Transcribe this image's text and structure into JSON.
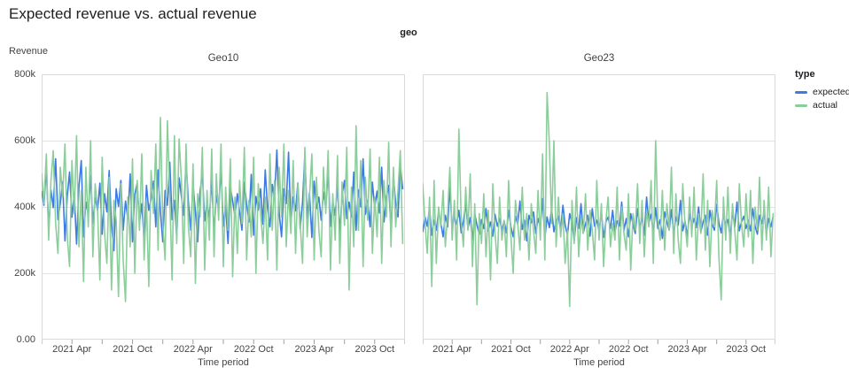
{
  "page": {
    "title": "Expected revenue vs. actual revenue"
  },
  "facet_dimension_label": "geo",
  "y_axis": {
    "title": "Revenue",
    "tick_labels": [
      "800k",
      "600k",
      "400k",
      "200k",
      "0.00"
    ],
    "max_thousands": 800
  },
  "x_axis": {
    "title": "Time period",
    "domain_weeks": 156,
    "ticks": [
      {
        "pos": 0,
        "label": ""
      },
      {
        "pos": 13,
        "label": "2021 Apr"
      },
      {
        "pos": 26,
        "label": ""
      },
      {
        "pos": 39,
        "label": "2021 Oct"
      },
      {
        "pos": 52,
        "label": ""
      },
      {
        "pos": 65,
        "label": "2022 Apr"
      },
      {
        "pos": 78,
        "label": ""
      },
      {
        "pos": 91,
        "label": "2022 Oct"
      },
      {
        "pos": 104,
        "label": ""
      },
      {
        "pos": 117,
        "label": "2023 Apr"
      },
      {
        "pos": 130,
        "label": ""
      },
      {
        "pos": 143,
        "label": "2023 Oct"
      },
      {
        "pos": 156,
        "label": ""
      }
    ]
  },
  "legend": {
    "title": "type",
    "items": [
      {
        "label": "expected",
        "color": "#3D7AE5"
      },
      {
        "label": "actual",
        "color": "#8BCD9B"
      }
    ]
  },
  "colors": {
    "grid": "#E2E2E2",
    "border": "#DADADA",
    "tick": "#9E9E9E"
  },
  "chart_data": {
    "type": "line",
    "title": "Expected revenue vs. actual revenue",
    "facet_by": "geo",
    "x_description": "weekly values, Jan 2021 - Dec 2023 (156 weeks)",
    "y_unit": "thousands (k) of revenue",
    "ylim": [
      0,
      800
    ],
    "grid": "horizontal only",
    "legend_position": "right",
    "facets": [
      {
        "name": "Geo10",
        "series": [
          {
            "name": "expected",
            "values": [
              447,
              405,
              520,
              332,
              451,
              398,
              545,
              362,
              410,
              476,
              298,
              432,
              505,
              369,
              440,
              288,
              462,
              540,
              310,
              415,
              378,
              495,
              350,
              428,
              390,
              472,
              318,
              440,
              385,
              510,
              345,
              268,
              455,
              402,
              480,
              330,
              418,
              365,
              500,
              295,
              438,
              472,
              352,
              410,
              300,
              465,
              390,
              425,
              478,
              340,
              512,
              385,
              295,
              450,
              405,
              535,
              362,
              420,
              310,
              488,
              432,
              375,
              540,
              415,
              330,
              470,
              385,
              295,
              445,
              502,
              358,
              412,
              368,
              480,
              322,
              435,
              395,
              515,
              342,
              405,
              290,
              460,
              418,
              372,
              440,
              385,
              330,
              475,
              408,
              355,
              498,
              315,
              432,
              390,
              455,
              348,
              512,
              395,
              340,
              468,
              425,
              572,
              380,
              310,
              455,
              410,
              565,
              352,
              430,
              388,
              472,
              335,
              415,
              558,
              365,
              442,
              308,
              478,
              395,
              430,
              360,
              445,
              398,
              510,
              342,
              418,
              375,
              465,
              320,
              435,
              480,
              365,
              415,
              370,
              505,
              330,
              452,
              400,
              545,
              378,
              420,
              340,
              475,
              398,
              448,
              382,
              520,
              355,
              430,
              465,
              330,
              495,
              410,
              370,
              528,
              455
            ]
          },
          {
            "name": "actual",
            "values": [
              500,
              410,
              560,
              300,
              480,
              570,
              350,
              260,
              520,
              430,
              590,
              310,
              220,
              540,
              380,
              615,
              280,
              450,
              175,
              520,
              340,
              600,
              250,
              470,
              390,
              180,
              550,
              320,
              230,
              490,
              150,
              420,
              360,
              130,
              470,
              240,
              115,
              430,
              280,
              545,
              200,
              480,
              330,
              560,
              240,
              420,
              160,
              510,
              380,
              590,
              270,
              670,
              350,
              240,
              660,
              430,
              180,
              615,
              290,
              605,
              480,
              230,
              590,
              340,
              250,
              530,
              170,
              440,
              370,
              580,
              210,
              450,
              300,
              575,
              250,
              500,
              360,
              590,
              220,
              460,
              330,
              545,
              190,
              430,
              260,
              480,
              350,
              580,
              240,
              420,
              310,
              550,
              200,
              470,
              380,
              290,
              430,
              240,
              560,
              330,
              480,
              210,
              520,
              370,
              590,
              280,
              450,
              320,
              540,
              260,
              470,
              350,
              230,
              580,
              310,
              430,
              560,
              240,
              490,
              330,
              250,
              520,
              380,
              570,
              210,
              440,
              300,
              555,
              230,
              475,
              345,
              580,
              150,
              460,
              280,
              645,
              330,
              540,
              220,
              490,
              360,
              575,
              260,
              430,
              310,
              550,
              230,
              480,
              370,
              595,
              280,
              520,
              340,
              450,
              570,
              290
            ]
          }
        ]
      },
      {
        "name": "Geo23",
        "series": [
          {
            "name": "expected",
            "values": [
              325,
              370,
              342,
              398,
              315,
              360,
              330,
              385,
              352,
              310,
              375,
              340,
              460,
              335,
              372,
              348,
              390,
              322,
              358,
              410,
              336,
              368,
              302,
              380,
              345,
              318,
              362,
              335,
              395,
              328,
              355,
              312,
              378,
              342,
              365,
              330,
              358,
              322,
              390,
              340,
              310,
              372,
              348,
              418,
              332,
              360,
              298,
              375,
              352,
              385,
              320,
              365,
              340,
              425,
              305,
              370,
              338,
              395,
              325,
              358,
              372,
              330,
              405,
              345,
              315,
              380,
              352,
              298,
              368,
              335,
              410,
              322,
              348,
              375,
              312,
              395,
              342,
              360,
              328,
              385,
              308,
              355,
              370,
              335,
              390,
              325,
              358,
              342,
              415,
              330,
              365,
              310,
              380,
              348,
              320,
              395,
              340,
              368,
              315,
              430,
              352,
              378,
              322,
              398,
              335,
              362,
              305,
              385,
              355,
              330,
              392,
              318,
              370,
              345,
              420,
              328,
              358,
              312,
              380,
              342,
              365,
              338,
              400,
              325,
              355,
              375,
              315,
              390,
              348,
              330,
              408,
              352,
              322,
              378,
              345,
              362,
              310,
              385,
              340,
              415,
              328,
              355,
              372,
              335,
              360,
              328,
              395,
              342,
              318,
              375,
              350,
              385,
              320,
              365,
              340,
              372
            ]
          },
          {
            "name": "actual",
            "values": [
              470,
              350,
              260,
              430,
              160,
              480,
              230,
              400,
              340,
              450,
              280,
              380,
              520,
              300,
              420,
              240,
              635,
              360,
              280,
              460,
              330,
              500,
              220,
              410,
              105,
              380,
              290,
              440,
              250,
              390,
              180,
              470,
              320,
              230,
              430,
              300,
              360,
              250,
              480,
              310,
              200,
              420,
              350,
              270,
              460,
              300,
              380,
              240,
              410,
              330,
              260,
              450,
              300,
              560,
              240,
              745,
              590,
              350,
              600,
              280,
              430,
              310,
              380,
              230,
              330,
              100,
              420,
              290,
              460,
              250,
              370,
              320,
              440,
              270,
              390,
              330,
              240,
              480,
              300,
              410,
              220,
              360,
              430,
              280,
              350,
              300,
              460,
              240,
              400,
              320,
              270,
              440,
              210,
              380,
              330,
              470,
              290,
              420,
              250,
              390,
              340,
              480,
              230,
              600,
              360,
              300,
              450,
              270,
              410,
              330,
              520,
              260,
              440,
              300,
              230,
              470,
              350,
              280,
              430,
              310,
              460,
              240,
              380,
              320,
              500,
              270,
              420,
              220,
              390,
              340,
              480,
              250,
              120,
              430,
              300,
              460,
              260,
              410,
              330,
              240,
              470,
              350,
              280,
              440,
              310,
              450,
              230,
              400,
              330,
              490,
              270,
              420,
              300,
              460,
              250,
              380
            ]
          }
        ]
      }
    ]
  }
}
